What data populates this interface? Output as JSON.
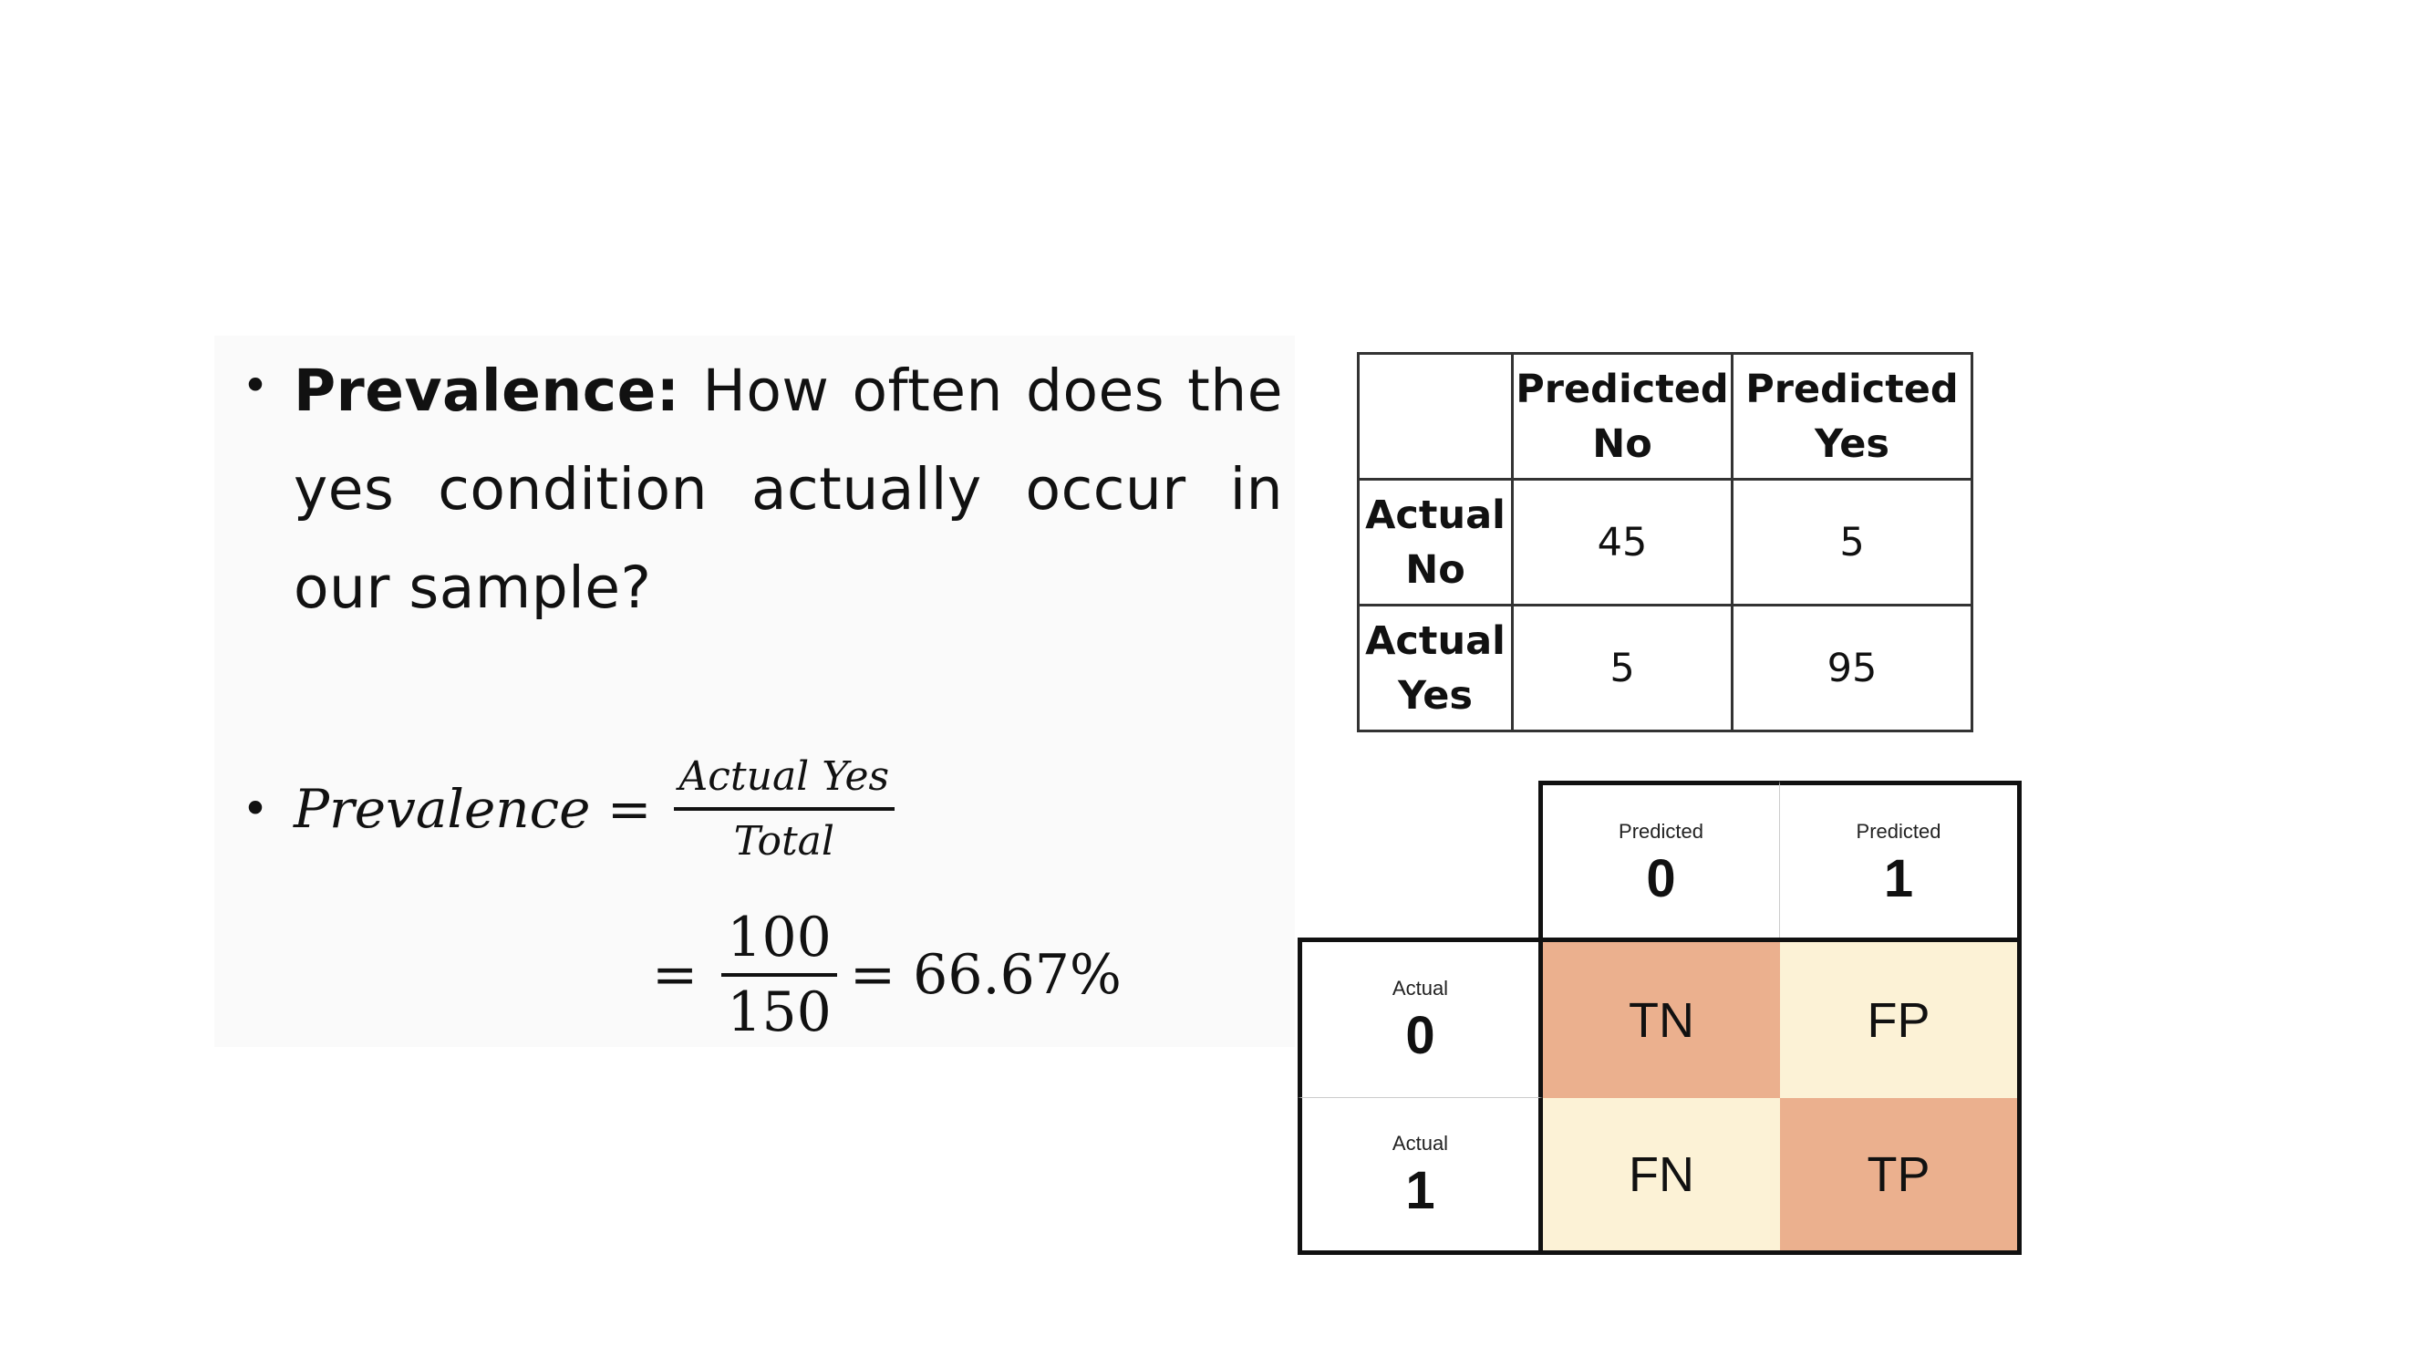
{
  "definition": {
    "term": "Prevalence:",
    "text": "How often does the yes condition actually occur in our sample?"
  },
  "formula": {
    "lhs": "Prevalence =",
    "numerator": "Actual Yes",
    "denominator": "Total"
  },
  "calculation": {
    "equals": "=",
    "numerator": "100",
    "denominator": "150",
    "result": "= 66.67%"
  },
  "confusion_table": {
    "columns": [
      "",
      "Predicted No",
      "Predicted Yes"
    ],
    "rows": [
      {
        "label": "Actual No",
        "values": [
          "45",
          "5"
        ]
      },
      {
        "label": "Actual Yes",
        "values": [
          "5",
          "95"
        ]
      }
    ]
  },
  "legend_matrix": {
    "columns": [
      {
        "label": "Predicted",
        "value": "0"
      },
      {
        "label": "Predicted",
        "value": "1"
      }
    ],
    "rows": [
      {
        "label": "Actual",
        "value": "0",
        "cells": [
          "TN",
          "FP"
        ]
      },
      {
        "label": "Actual",
        "value": "1",
        "cells": [
          "FN",
          "TP"
        ]
      }
    ],
    "colors": {
      "highlight": "#ebb08e",
      "light": "#fcf2d6",
      "border": "#111111"
    }
  }
}
